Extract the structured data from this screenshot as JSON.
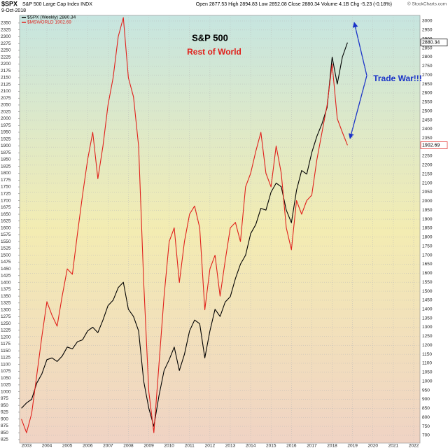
{
  "chart_data": {
    "type": "line",
    "symbol": "$SPX",
    "title": "S&P 500 Large Cap Index INDX",
    "date": "9-Oct-2018",
    "quote": "Open 2877.53 High 2894.83 Low 2852.08 Close 2880.34 Volume 4.1B Chg -5.23 (-0.18%)",
    "source": "© StockCharts.com",
    "annotations": [
      {
        "text": "S&P 500",
        "color": "#000000"
      },
      {
        "text": "Rest of World",
        "color": "#e0201b"
      },
      {
        "text": "Trade War!!!",
        "color": "#1a33c8"
      }
    ],
    "x": [
      2002.75,
      2003,
      2003.25,
      2003.5,
      2003.75,
      2004,
      2004.25,
      2004.5,
      2004.75,
      2005,
      2005.25,
      2005.5,
      2005.75,
      2006,
      2006.25,
      2006.5,
      2006.75,
      2007,
      2007.25,
      2007.5,
      2007.75,
      2008,
      2008.25,
      2008.5,
      2008.75,
      2009,
      2009.25,
      2009.5,
      2009.75,
      2010,
      2010.25,
      2010.5,
      2010.75,
      2011,
      2011.25,
      2011.5,
      2011.75,
      2012,
      2012.25,
      2012.5,
      2012.75,
      2013,
      2013.25,
      2013.5,
      2013.75,
      2014,
      2014.25,
      2014.5,
      2014.75,
      2015,
      2015.25,
      2015.5,
      2015.75,
      2016,
      2016.25,
      2016.5,
      2016.75,
      2017,
      2017.25,
      2017.5,
      2017.75,
      2018,
      2018.25,
      2018.5,
      2018.75
    ],
    "series": [
      {
        "name": "$SPX (Weekly) 2880.34",
        "color": "#000000",
        "axis": "y2",
        "values": [
          850,
          880,
          900,
          990,
          1040,
          1120,
          1130,
          1110,
          1140,
          1190,
          1180,
          1220,
          1230,
          1280,
          1300,
          1270,
          1340,
          1420,
          1450,
          1520,
          1550,
          1400,
          1360,
          1280,
          1000,
          850,
          750,
          920,
          1060,
          1120,
          1190,
          1060,
          1150,
          1280,
          1340,
          1320,
          1130,
          1280,
          1400,
          1360,
          1440,
          1470,
          1570,
          1650,
          1700,
          1820,
          1870,
          1960,
          1950,
          2050,
          2100,
          2080,
          1950,
          1880,
          2060,
          2170,
          2150,
          2270,
          2360,
          2430,
          2520,
          2800,
          2650,
          2800,
          2880.34
        ]
      },
      {
        "name": "$MSWORLD 1902.69",
        "color": "#e0201b",
        "axis": "y",
        "values": [
          900,
          850,
          920,
          1060,
          1200,
          1330,
          1280,
          1240,
          1350,
          1450,
          1430,
          1580,
          1720,
          1850,
          1950,
          1780,
          1900,
          2050,
          2150,
          2300,
          2370,
          2150,
          2080,
          1900,
          1400,
          1000,
          850,
          1100,
          1350,
          1550,
          1600,
          1400,
          1550,
          1650,
          1680,
          1600,
          1300,
          1450,
          1500,
          1350,
          1480,
          1600,
          1620,
          1550,
          1750,
          1800,
          1880,
          1950,
          1800,
          1750,
          1900,
          1800,
          1600,
          1520,
          1700,
          1650,
          1700,
          1720,
          1850,
          1950,
          2050,
          2200,
          2000,
          1950,
          1902.69
        ]
      }
    ],
    "end_labels": [
      "2880.34",
      "1902.69"
    ],
    "xlim": [
      2002.66,
      2022.31
    ],
    "xticks": [
      2003,
      2004,
      2005,
      2006,
      2007,
      2008,
      2009,
      2010,
      2011,
      2012,
      2013,
      2014,
      2015,
      2016,
      2017,
      2018,
      2019,
      2020,
      2021,
      2022
    ],
    "ylim": [
      812,
      2378
    ],
    "yticks": [
      825,
      850,
      875,
      900,
      925,
      950,
      975,
      1000,
      1025,
      1050,
      1075,
      1100,
      1125,
      1150,
      1175,
      1200,
      1225,
      1250,
      1275,
      1300,
      1325,
      1350,
      1375,
      1400,
      1425,
      1450,
      1475,
      1500,
      1525,
      1550,
      1575,
      1600,
      1625,
      1650,
      1675,
      1700,
      1725,
      1750,
      1775,
      1800,
      1825,
      1850,
      1875,
      1900,
      1925,
      1950,
      1975,
      2000,
      2025,
      2050,
      2075,
      2100,
      2125,
      2150,
      2175,
      2200,
      2225,
      2250,
      2275,
      2300,
      2325,
      2350
    ],
    "y2lim": [
      657,
      3031
    ],
    "y2ticks": [
      700,
      750,
      800,
      850,
      900,
      950,
      1000,
      1050,
      1100,
      1150,
      1200,
      1250,
      1300,
      1350,
      1400,
      1450,
      1500,
      1550,
      1600,
      1650,
      1700,
      1750,
      1800,
      1850,
      1900,
      1950,
      2000,
      2050,
      2100,
      2150,
      2200,
      2250,
      2300,
      2350,
      2400,
      2450,
      2500,
      2550,
      2600,
      2650,
      2700,
      2750,
      2800,
      2850,
      2900,
      2950,
      3000
    ],
    "grid": true
  }
}
